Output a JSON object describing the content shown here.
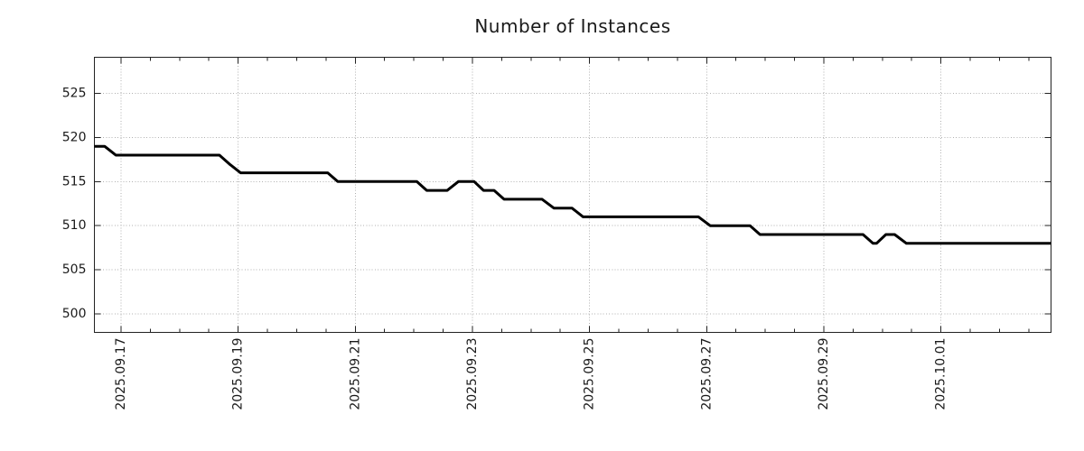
{
  "title": "Number of Instances",
  "colors": {
    "line": "#000000",
    "grid": "#b0b0b0",
    "spine": "#222222",
    "text": "#1a1a1a",
    "background": "#ffffff"
  },
  "chart_data": {
    "type": "line",
    "title": "Number of Instances",
    "xlabel": "",
    "ylabel": "",
    "x_unit": "days since 2025-09-17 00:00",
    "xlim": [
      -0.455,
      15.88
    ],
    "ylim": [
      497.9,
      529.1
    ],
    "grid": "dotted",
    "legend": "none",
    "y_ticks": [
      500,
      505,
      510,
      515,
      520,
      525
    ],
    "x_major_ticks": [
      {
        "t": 0,
        "label": "2025.09.17"
      },
      {
        "t": 2,
        "label": "2025.09.19"
      },
      {
        "t": 4,
        "label": "2025.09.21"
      },
      {
        "t": 6,
        "label": "2025.09.23"
      },
      {
        "t": 8,
        "label": "2025.09.25"
      },
      {
        "t": 10,
        "label": "2025.09.27"
      },
      {
        "t": 12,
        "label": "2025.09.29"
      },
      {
        "t": 14,
        "label": "2025.10.01"
      }
    ],
    "x_minor_step": 0.5,
    "series": [
      {
        "name": "instances",
        "color": "#000000",
        "points": [
          [
            -0.455,
            519
          ],
          [
            -0.28,
            519
          ],
          [
            -0.09,
            518
          ],
          [
            1.68,
            518
          ],
          [
            1.85,
            517
          ],
          [
            2.04,
            516
          ],
          [
            3.53,
            516
          ],
          [
            3.7,
            515
          ],
          [
            5.05,
            515
          ],
          [
            5.22,
            514
          ],
          [
            5.57,
            514
          ],
          [
            5.76,
            515
          ],
          [
            6.03,
            515
          ],
          [
            6.19,
            514
          ],
          [
            6.37,
            514
          ],
          [
            6.54,
            513
          ],
          [
            7.19,
            513
          ],
          [
            7.39,
            512
          ],
          [
            7.7,
            512
          ],
          [
            7.89,
            511
          ],
          [
            9.86,
            511
          ],
          [
            10.06,
            510
          ],
          [
            10.74,
            510
          ],
          [
            10.91,
            509
          ],
          [
            12.67,
            509
          ],
          [
            12.84,
            508
          ],
          [
            12.9,
            508
          ],
          [
            13.06,
            509
          ],
          [
            13.21,
            509
          ],
          [
            13.41,
            508
          ],
          [
            15.88,
            508
          ]
        ]
      }
    ]
  }
}
